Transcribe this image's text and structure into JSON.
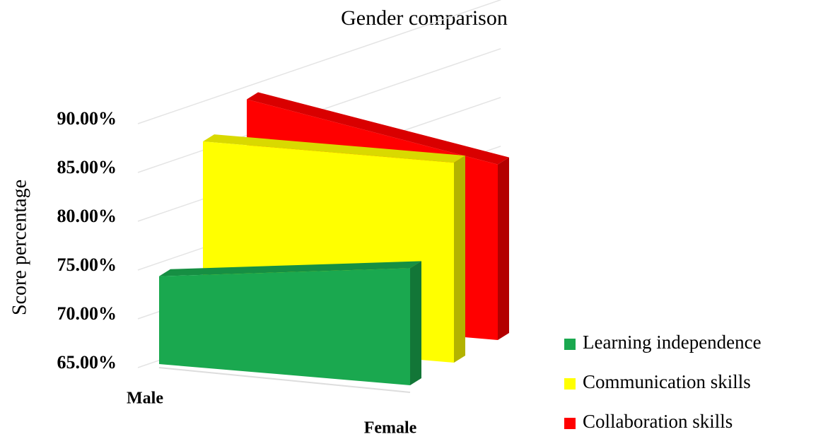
{
  "chart_data": {
    "type": "area3d",
    "title": "Gender comparison",
    "y_label": "Score percentage",
    "categories": [
      "Male",
      "Female"
    ],
    "series": [
      {
        "name": "Learning independence",
        "color": "#1aa84f",
        "values": [
          74,
          77
        ]
      },
      {
        "name": "Communication skills",
        "color": "#ffff00",
        "values": [
          85.5,
          85.5
        ]
      },
      {
        "name": "Collaboration skills",
        "color": "#ff0000",
        "values": [
          87.5,
          83
        ]
      }
    ],
    "ylim": [
      65,
      90
    ],
    "yticks": [
      {
        "value": 65,
        "label": "65.00%"
      },
      {
        "value": 70,
        "label": "70.00%"
      },
      {
        "value": 75,
        "label": "75.00%"
      },
      {
        "value": 80,
        "label": "80.00%"
      },
      {
        "value": 85,
        "label": "85.00%"
      },
      {
        "value": 90,
        "label": "90.00%"
      }
    ],
    "grid": true,
    "legend": "right"
  }
}
